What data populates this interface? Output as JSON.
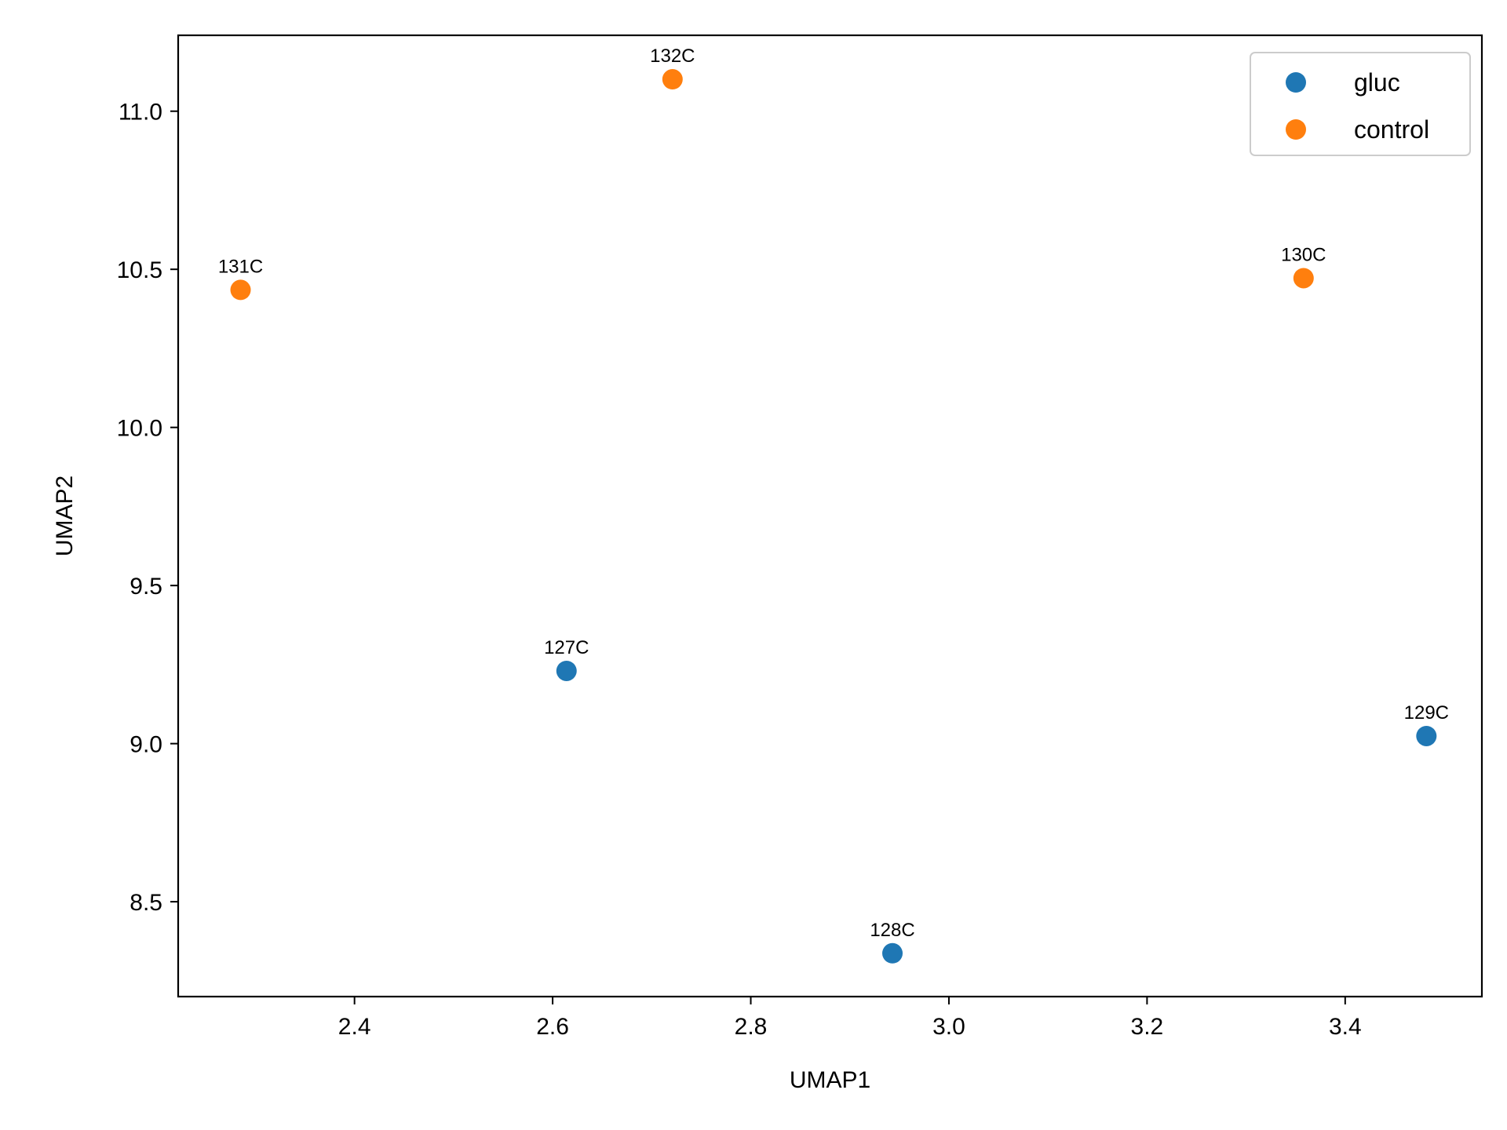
{
  "chart_data": {
    "type": "scatter",
    "xlabel": "UMAP1",
    "ylabel": "UMAP2",
    "xlim": [
      2.222,
      3.538
    ],
    "ylim": [
      8.2,
      11.24
    ],
    "xticks": [
      2.4,
      2.6,
      2.8,
      3.0,
      3.2,
      3.4
    ],
    "xtick_labels": [
      "2.4",
      "2.6",
      "2.8",
      "3.0",
      "3.2",
      "3.4"
    ],
    "yticks": [
      8.5,
      9.0,
      9.5,
      10.0,
      10.5,
      11.0
    ],
    "ytick_labels": [
      "8.5",
      "9.0",
      "9.5",
      "10.0",
      "10.5",
      "11.0"
    ],
    "grid": false,
    "legend_position": "top-right",
    "series": [
      {
        "name": "gluc",
        "color": "#1f77b4",
        "points": [
          {
            "label": "127C",
            "x": 2.614,
            "y": 9.23
          },
          {
            "label": "128C",
            "x": 2.943,
            "y": 8.337
          },
          {
            "label": "129C",
            "x": 3.482,
            "y": 9.024
          }
        ]
      },
      {
        "name": "control",
        "color": "#ff7f0e",
        "points": [
          {
            "label": "131C",
            "x": 2.285,
            "y": 10.435
          },
          {
            "label": "132C",
            "x": 2.721,
            "y": 11.101
          },
          {
            "label": "130C",
            "x": 3.358,
            "y": 10.472
          }
        ]
      }
    ]
  }
}
